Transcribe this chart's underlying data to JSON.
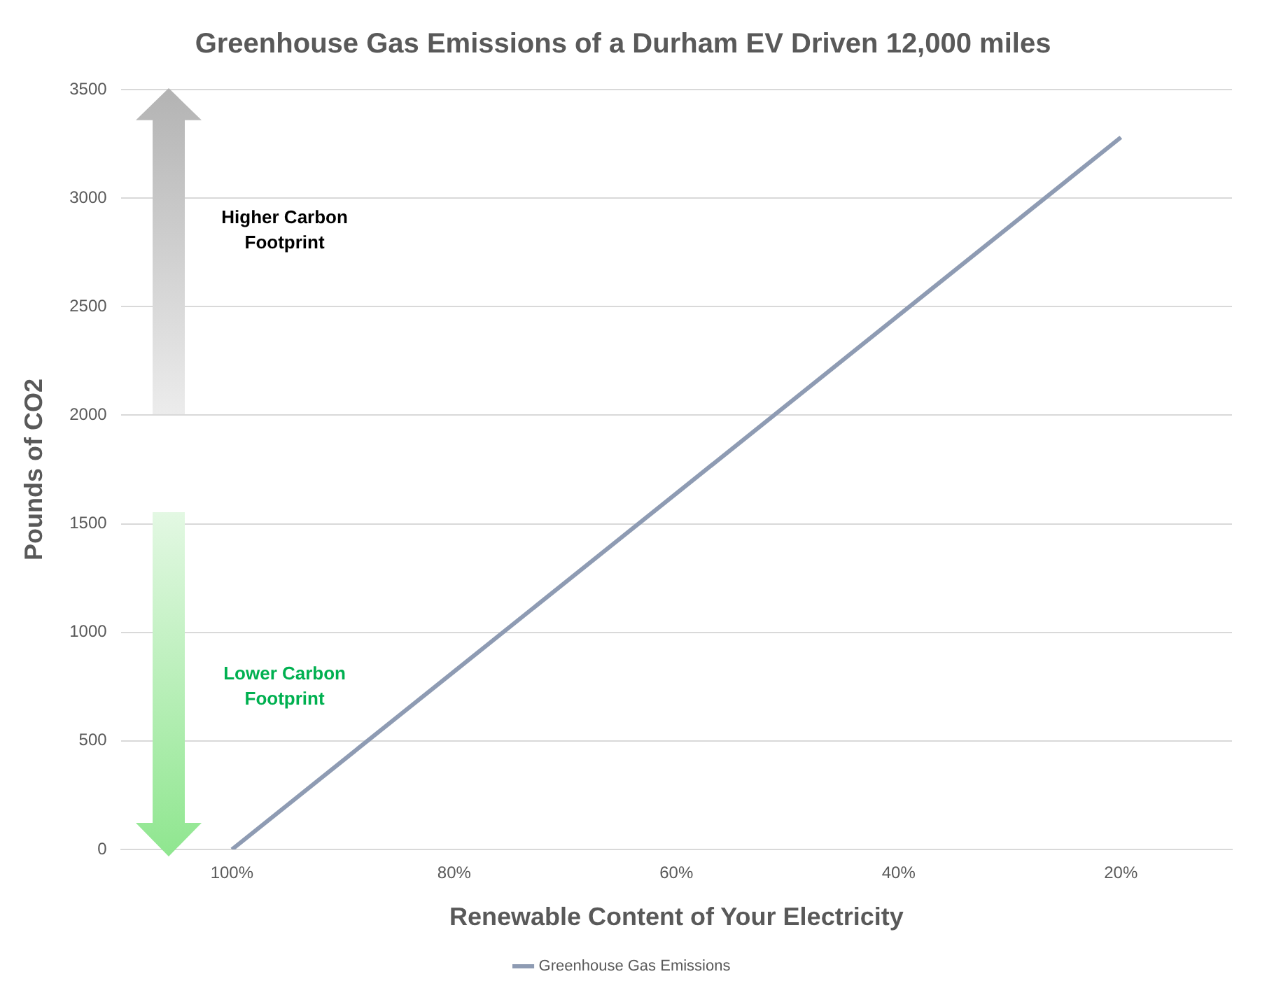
{
  "chart_data": {
    "type": "line",
    "title": "Greenhouse Gas Emissions of a Durham EV Driven 12,000 miles",
    "xlabel": "Renewable Content of Your Electricity",
    "ylabel": "Pounds of CO2",
    "categories": [
      "100%",
      "80%",
      "60%",
      "40%",
      "20%"
    ],
    "series": [
      {
        "name": "Greenhouse Gas Emissions",
        "color": "#8e9bb3",
        "values": [
          0,
          820,
          1640,
          2460,
          3280
        ]
      }
    ],
    "ylim": [
      0,
      3500
    ],
    "yticks": [
      0,
      500,
      1000,
      1500,
      2000,
      2500,
      3000,
      3500
    ],
    "grid": "y",
    "legend": "bottom",
    "marker": "none",
    "line_style": "solid",
    "annotations": [
      "Higher Carbon Footprint",
      "Lower Carbon Footprint"
    ]
  }
}
